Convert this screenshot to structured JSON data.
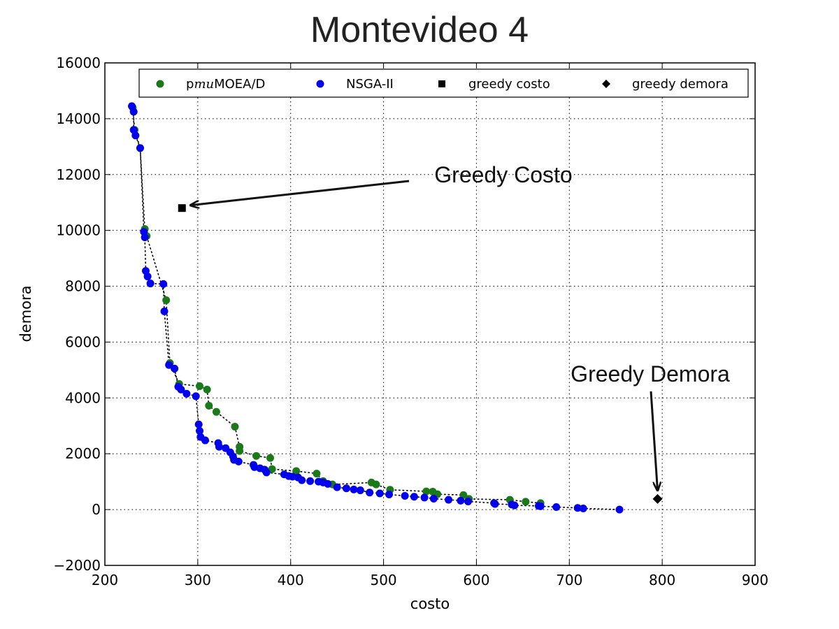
{
  "chart_data": {
    "type": "scatter",
    "title": "Montevideo 4",
    "xlabel": "costo",
    "ylabel": "demora",
    "xlim": [
      200,
      900
    ],
    "ylim": [
      -2000,
      16000
    ],
    "xticks": [
      200,
      300,
      400,
      500,
      600,
      700,
      800,
      900
    ],
    "yticks": [
      -2000,
      0,
      2000,
      4000,
      6000,
      8000,
      10000,
      12000,
      14000,
      16000
    ],
    "grid": true,
    "legend_position": "top",
    "series": [
      {
        "name": "pmuMOEA/D",
        "name_parts": [
          "p",
          "mu",
          "MOEA/D"
        ],
        "color": "#1a7a1a",
        "marker": "circle",
        "connected": true,
        "points": [
          [
            230,
            14400
          ],
          [
            232,
            13600
          ],
          [
            238,
            12950
          ],
          [
            243,
            10050
          ],
          [
            245,
            9800
          ],
          [
            266,
            7500
          ],
          [
            270,
            5250
          ],
          [
            280,
            4500
          ],
          [
            302,
            4420
          ],
          [
            310,
            4300
          ],
          [
            312,
            3720
          ],
          [
            320,
            3500
          ],
          [
            340,
            2970
          ],
          [
            345,
            2250
          ],
          [
            345,
            2100
          ],
          [
            363,
            1920
          ],
          [
            378,
            1850
          ],
          [
            380,
            1450
          ],
          [
            406,
            1380
          ],
          [
            428,
            1290
          ],
          [
            435,
            1020
          ],
          [
            445,
            900
          ],
          [
            487,
            970
          ],
          [
            492,
            900
          ],
          [
            507,
            710
          ],
          [
            546,
            650
          ],
          [
            553,
            640
          ],
          [
            558,
            550
          ],
          [
            586,
            520
          ],
          [
            592,
            380
          ],
          [
            636,
            350
          ],
          [
            653,
            280
          ],
          [
            669,
            230
          ]
        ]
      },
      {
        "name": "NSGA-II",
        "color": "#0000ee",
        "marker": "circle",
        "connected": true,
        "points": [
          [
            229,
            14450
          ],
          [
            231,
            14250
          ],
          [
            231,
            13600
          ],
          [
            233,
            13400
          ],
          [
            238,
            12950
          ],
          [
            242,
            9950
          ],
          [
            243,
            9750
          ],
          [
            244,
            8550
          ],
          [
            246,
            8350
          ],
          [
            249,
            8100
          ],
          [
            263,
            8080
          ],
          [
            264,
            7100
          ],
          [
            269,
            5180
          ],
          [
            275,
            5050
          ],
          [
            279,
            4400
          ],
          [
            282,
            4300
          ],
          [
            288,
            4150
          ],
          [
            298,
            4060
          ],
          [
            301,
            3050
          ],
          [
            302,
            2820
          ],
          [
            303,
            2600
          ],
          [
            308,
            2480
          ],
          [
            322,
            2380
          ],
          [
            323,
            2250
          ],
          [
            330,
            2200
          ],
          [
            335,
            2050
          ],
          [
            338,
            1900
          ],
          [
            339,
            1780
          ],
          [
            344,
            1720
          ],
          [
            360,
            1600
          ],
          [
            361,
            1520
          ],
          [
            367,
            1480
          ],
          [
            372,
            1430
          ],
          [
            374,
            1330
          ],
          [
            393,
            1260
          ],
          [
            398,
            1200
          ],
          [
            402,
            1180
          ],
          [
            408,
            1150
          ],
          [
            412,
            1050
          ],
          [
            421,
            1020
          ],
          [
            430,
            1000
          ],
          [
            435,
            970
          ],
          [
            440,
            920
          ],
          [
            450,
            800
          ],
          [
            460,
            760
          ],
          [
            468,
            720
          ],
          [
            475,
            690
          ],
          [
            485,
            610
          ],
          [
            496,
            580
          ],
          [
            506,
            540
          ],
          [
            523,
            490
          ],
          [
            533,
            460
          ],
          [
            544,
            430
          ],
          [
            554,
            390
          ],
          [
            570,
            350
          ],
          [
            583,
            320
          ],
          [
            591,
            290
          ],
          [
            619,
            230
          ],
          [
            620,
            200
          ],
          [
            638,
            180
          ],
          [
            641,
            150
          ],
          [
            667,
            130
          ],
          [
            669,
            120
          ],
          [
            686,
            90
          ],
          [
            709,
            60
          ],
          [
            715,
            40
          ],
          [
            754,
            0
          ]
        ]
      },
      {
        "name": "greedy costo",
        "color": "#000000",
        "marker": "square",
        "points": [
          [
            283,
            10800
          ]
        ]
      },
      {
        "name": "greedy demora",
        "color": "#000000",
        "marker": "diamond",
        "points": [
          [
            795,
            380
          ]
        ]
      }
    ],
    "annotations": [
      {
        "text": "Greedy Costo",
        "target": [
          283,
          10800
        ]
      },
      {
        "text": "Greedy Demora",
        "target": [
          795,
          380
        ]
      }
    ]
  }
}
